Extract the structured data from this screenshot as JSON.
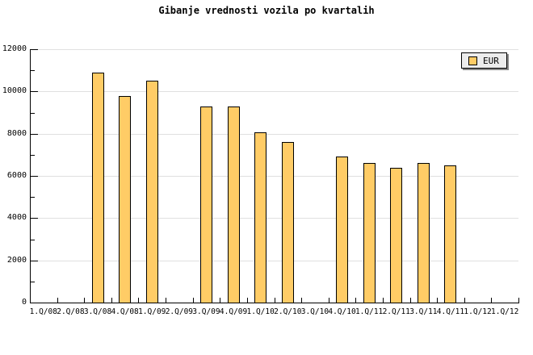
{
  "title": "Gibanje vrednosti vozila po kvartalih",
  "legend": {
    "label": "EUR",
    "swatch_color": "#FFCC66",
    "position": "top-right"
  },
  "colors": {
    "background": "#FFFFFF",
    "bar_fill": "#FFCC66",
    "bar_border": "#000000",
    "grid": "#E0E0E0",
    "axis": "#000000",
    "legend_bg": "#ECECEC",
    "legend_shadow": "#888888",
    "text": "#000000"
  },
  "chart_data": {
    "type": "bar",
    "title": "Gibanje vrednosti vozila po kvartalih",
    "categories": [
      "1.Q/08",
      "2.Q/08",
      "3.Q/08",
      "4.Q/08",
      "1.Q/09",
      "2.Q/09",
      "3.Q/09",
      "4.Q/09",
      "1.Q/10",
      "2.Q/10",
      "3.Q/10",
      "4.Q/10",
      "1.Q/11",
      "2.Q/11",
      "3.Q/11",
      "4.Q/11",
      "1.Q/12",
      "1.Q/12"
    ],
    "series": [
      {
        "name": "EUR",
        "values": [
          null,
          null,
          10900,
          9800,
          10500,
          null,
          9300,
          9300,
          8050,
          7600,
          null,
          6900,
          6600,
          6400,
          6600,
          6500,
          null,
          null
        ]
      }
    ],
    "xlabel": "",
    "ylabel": "",
    "ylim": [
      0,
      12000
    ],
    "ytick_step": 2000,
    "yticks": [
      0,
      2000,
      4000,
      6000,
      8000,
      10000,
      12000
    ],
    "grid": true,
    "legend_position": "top-right"
  }
}
